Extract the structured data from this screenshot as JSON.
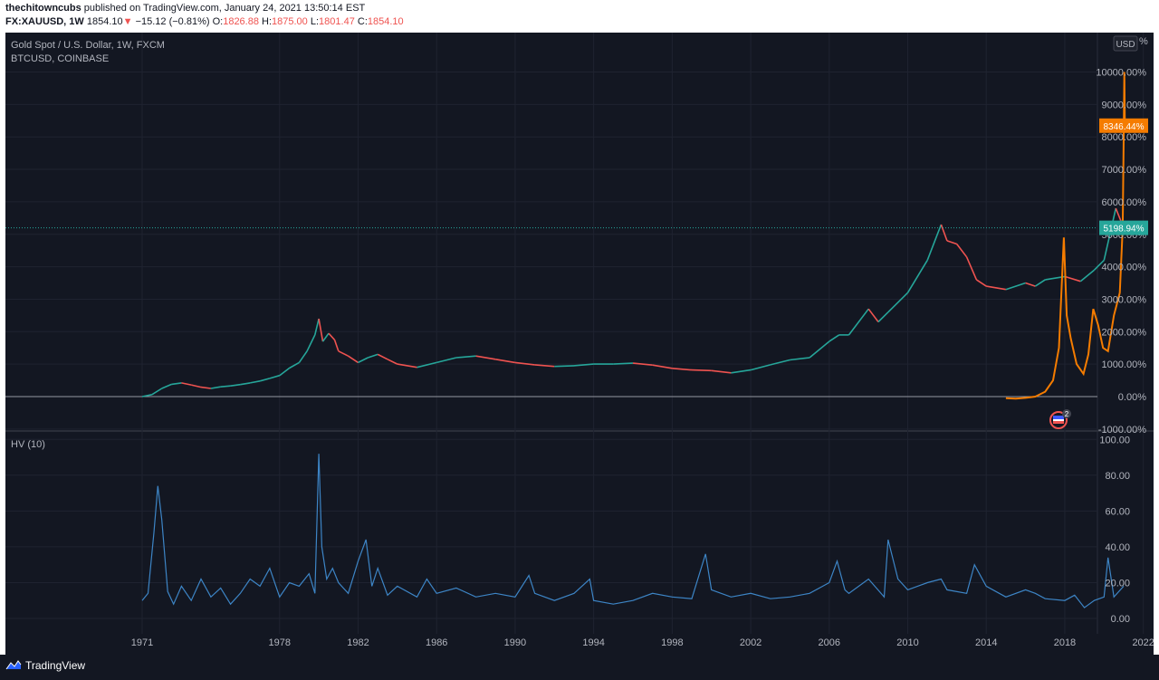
{
  "header": {
    "author": "thechitowncubs",
    "published_text": "published on TradingView.com, January 24, 2021 13:50:14 EST",
    "symbol": "FX:XAUUSD, 1W",
    "last_price": "1854.10",
    "change": "−15.12 (−0.81%)",
    "open_label": "O:",
    "open_value": "1826.88",
    "high_label": "H:",
    "high_value": "1875.00",
    "low_label": "L:",
    "low_value": "1801.47",
    "close_label": "C:",
    "close_value": "1854.10"
  },
  "main_pane": {
    "title": "Gold Spot / U.S. Dollar, 1W, FXCM",
    "compare_symbol": "BTCUSD, COINBASE",
    "currency_button": "USD",
    "top_axis_label": "11",
    "top_axis_label_suffix": "%",
    "price_badges": [
      {
        "text": "8346.44%",
        "color": "#f57c00"
      },
      {
        "text": "5198.94%",
        "color": "#26a69a"
      }
    ],
    "event_badge_count": "2"
  },
  "indicator_pane": {
    "title": "HV (10)"
  },
  "footer": {
    "brand": "TradingView"
  },
  "colors": {
    "background": "#131722",
    "grid": "#1f2330",
    "axis_text": "#b2b5be",
    "gold_up": "#26a69a",
    "gold_down": "#ef5350",
    "btc": "#f57c00",
    "hv": "#3d85c6"
  },
  "chart_data": [
    {
      "type": "line",
      "title": "Gold Spot / U.S. Dollar, 1W, FXCM",
      "xlabel": "",
      "ylabel": "",
      "x_ticks": [
        "1971",
        "1978",
        "1982",
        "1986",
        "1990",
        "1994",
        "1998",
        "2002",
        "2006",
        "2010",
        "2014",
        "2018",
        "2022"
      ],
      "y_ticks": [
        "-1000.00%",
        "0.00%",
        "1000.00%",
        "2000.00%",
        "3000.00%",
        "4000.00%",
        "5000.00%",
        "6000.00%",
        "7000.00%",
        "8000.00%",
        "9000.00%",
        "10000.00%"
      ],
      "ylim": [
        -1000,
        11000
      ],
      "xlim": [
        1966.1,
        2022.8
      ],
      "series": [
        {
          "name": "Gold Spot / U.S. Dollar, 1W, FXCM",
          "x": [
            1971.0,
            1971.5,
            1972.0,
            1972.5,
            1973.0,
            1973.5,
            1974.0,
            1974.5,
            1975.0,
            1975.5,
            1976.0,
            1976.5,
            1977.0,
            1977.5,
            1978.0,
            1978.5,
            1979.0,
            1979.4,
            1979.8,
            1980.0,
            1980.2,
            1980.5,
            1980.8,
            1981.0,
            1981.5,
            1982.0,
            1982.5,
            1983.0,
            1983.5,
            1984.0,
            1985.0,
            1986.0,
            1987.0,
            1988.0,
            1989.0,
            1990.0,
            1991.0,
            1992.0,
            1993.0,
            1994.0,
            1995.0,
            1996.0,
            1997.0,
            1998.0,
            1999.0,
            2000.0,
            2001.0,
            2002.0,
            2003.0,
            2004.0,
            2005.0,
            2006.0,
            2006.5,
            2007.0,
            2008.0,
            2008.5,
            2009.0,
            2010.0,
            2011.0,
            2011.7,
            2012.0,
            2012.5,
            2013.0,
            2013.5,
            2014.0,
            2015.0,
            2016.0,
            2016.5,
            2017.0,
            2018.0,
            2018.8,
            2019.5,
            2020.0,
            2020.6,
            2020.9,
            2021.06
          ],
          "values": [
            0,
            60,
            250,
            380,
            420,
            360,
            290,
            250,
            300,
            330,
            370,
            420,
            480,
            560,
            650,
            880,
            1050,
            1400,
            1900,
            2400,
            1700,
            1950,
            1750,
            1400,
            1250,
            1050,
            1200,
            1300,
            1150,
            1000,
            900,
            1050,
            1200,
            1250,
            1150,
            1050,
            980,
            930,
            950,
            1000,
            1000,
            1030,
            970,
            870,
            820,
            800,
            730,
            820,
            980,
            1130,
            1200,
            1700,
            1900,
            1900,
            2700,
            2300,
            2600,
            3200,
            4200,
            5300,
            4800,
            4700,
            4300,
            3600,
            3400,
            3300,
            3500,
            3400,
            3600,
            3700,
            3550,
            3900,
            4200,
            5800,
            5350,
            5198.94
          ]
        },
        {
          "name": "BTCUSD, COINBASE",
          "x": [
            2015.0,
            2015.5,
            2016.0,
            2016.5,
            2017.0,
            2017.4,
            2017.7,
            2017.95,
            2018.1,
            2018.3,
            2018.6,
            2018.95,
            2019.2,
            2019.45,
            2019.7,
            2019.95,
            2020.2,
            2020.5,
            2020.8,
            2020.95,
            2021.0,
            2021.03,
            2021.06
          ],
          "values": [
            -50,
            -60,
            -40,
            0,
            150,
            500,
            1500,
            4900,
            2500,
            1800,
            1000,
            700,
            1300,
            2700,
            2200,
            1500,
            1400,
            2500,
            3200,
            5200,
            8000,
            10000,
            8346.44
          ]
        }
      ]
    },
    {
      "type": "line",
      "title": "HV (10)",
      "xlabel": "",
      "ylabel": "",
      "y_ticks": [
        "0.00",
        "20.00",
        "40.00",
        "60.00",
        "80.00",
        "100.00"
      ],
      "ylim": [
        -5,
        100
      ],
      "series": [
        {
          "name": "HV (10)",
          "x": [
            1971.0,
            1971.3,
            1971.6,
            1971.8,
            1972.0,
            1972.3,
            1972.6,
            1973.0,
            1973.5,
            1974.0,
            1974.5,
            1975.0,
            1975.5,
            1976.0,
            1976.5,
            1977.0,
            1977.5,
            1978.0,
            1978.5,
            1979.0,
            1979.5,
            1979.8,
            1980.0,
            1980.15,
            1980.4,
            1980.7,
            1981.0,
            1981.5,
            1982.0,
            1982.4,
            1982.7,
            1983.0,
            1983.5,
            1984.0,
            1985.0,
            1985.5,
            1986.0,
            1987.0,
            1988.0,
            1989.0,
            1990.0,
            1990.7,
            1991.0,
            1992.0,
            1993.0,
            1993.8,
            1994.0,
            1995.0,
            1996.0,
            1997.0,
            1998.0,
            1999.0,
            1999.7,
            2000.0,
            2001.0,
            2002.0,
            2003.0,
            2004.0,
            2005.0,
            2006.0,
            2006.4,
            2006.8,
            2007.0,
            2008.0,
            2008.8,
            2009.0,
            2009.5,
            2010.0,
            2011.0,
            2011.7,
            2012.0,
            2013.0,
            2013.4,
            2014.0,
            2015.0,
            2016.0,
            2016.5,
            2017.0,
            2018.0,
            2018.5,
            2019.0,
            2019.5,
            2020.0,
            2020.2,
            2020.5,
            2021.0
          ],
          "values": [
            10,
            14,
            48,
            74,
            55,
            15,
            8,
            18,
            10,
            22,
            12,
            17,
            8,
            14,
            22,
            18,
            28,
            12,
            20,
            18,
            25,
            14,
            92,
            40,
            22,
            28,
            20,
            14,
            32,
            44,
            18,
            28,
            13,
            18,
            12,
            22,
            14,
            17,
            12,
            14,
            12,
            24,
            14,
            10,
            14,
            22,
            10,
            8,
            10,
            14,
            12,
            11,
            36,
            16,
            12,
            14,
            11,
            12,
            14,
            20,
            32,
            16,
            14,
            22,
            12,
            44,
            22,
            16,
            20,
            22,
            16,
            14,
            30,
            18,
            12,
            16,
            14,
            11,
            10,
            13,
            6,
            10,
            12,
            34,
            12,
            18
          ]
        }
      ]
    }
  ]
}
